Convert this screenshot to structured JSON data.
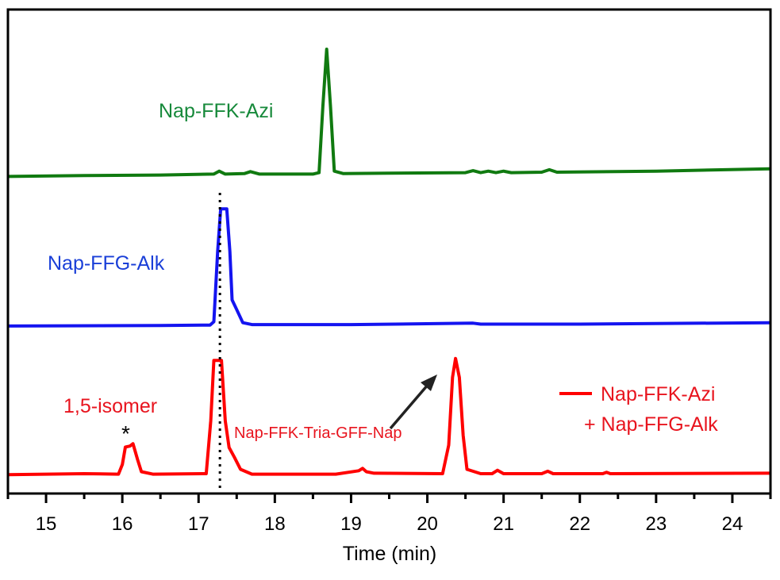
{
  "chart_data": {
    "type": "line",
    "title": "",
    "xlabel": "Time (min)",
    "ylabel": "",
    "xlim": [
      14.5,
      24.5
    ],
    "ylim": [
      0,
      100
    ],
    "xticks": [
      "15",
      "16",
      "17",
      "18",
      "19",
      "20",
      "21",
      "22",
      "23",
      "24"
    ],
    "y_ticks_shown": false,
    "grid": false,
    "legend": {
      "position": "right",
      "entries": [
        {
          "line1": "Nap-FFK-Azi",
          "line2": "+ Nap-FFG-Alk",
          "color": "#ff0000"
        }
      ]
    },
    "series": [
      {
        "name": "Nap-FFK-Azi",
        "color": "#107a10",
        "label_color": "#16893a",
        "points": [
          [
            14.5,
            65.5
          ],
          [
            15.5,
            65.7
          ],
          [
            16.5,
            65.8
          ],
          [
            17.2,
            66.0
          ],
          [
            17.27,
            66.6
          ],
          [
            17.35,
            66.0
          ],
          [
            17.6,
            66.1
          ],
          [
            17.68,
            66.5
          ],
          [
            17.8,
            66.0
          ],
          [
            18.5,
            66.0
          ],
          [
            18.58,
            66.3
          ],
          [
            18.63,
            80
          ],
          [
            18.68,
            91.8
          ],
          [
            18.73,
            80
          ],
          [
            18.78,
            66.6
          ],
          [
            18.9,
            66.1
          ],
          [
            19.5,
            66.2
          ],
          [
            20.5,
            66.3
          ],
          [
            20.6,
            66.7
          ],
          [
            20.7,
            66.3
          ],
          [
            20.8,
            66.6
          ],
          [
            20.9,
            66.3
          ],
          [
            21.0,
            66.6
          ],
          [
            21.1,
            66.3
          ],
          [
            21.5,
            66.4
          ],
          [
            21.6,
            66.9
          ],
          [
            21.7,
            66.4
          ],
          [
            23,
            66.6
          ],
          [
            24.5,
            67.1
          ]
        ]
      },
      {
        "name": "Nap-FFG-Alk",
        "color": "#1414f0",
        "label_color": "#1a3fd8",
        "points": [
          [
            14.5,
            34.6
          ],
          [
            16.5,
            34.7
          ],
          [
            17.15,
            34.8
          ],
          [
            17.2,
            35.5
          ],
          [
            17.25,
            50
          ],
          [
            17.29,
            58.8
          ],
          [
            17.37,
            58.8
          ],
          [
            17.41,
            50
          ],
          [
            17.44,
            40
          ],
          [
            17.5,
            38
          ],
          [
            17.58,
            35.3
          ],
          [
            17.7,
            34.9
          ],
          [
            19,
            34.9
          ],
          [
            20.6,
            35.2
          ],
          [
            20.7,
            35.0
          ],
          [
            22,
            35.0
          ],
          [
            24.5,
            35.3
          ]
        ]
      },
      {
        "name": "Nap-FFK-Azi + Nap-FFG-Alk",
        "color": "#ff0000",
        "label_color": "#e8141e",
        "points": [
          [
            14.5,
            3.9
          ],
          [
            15.5,
            4.1
          ],
          [
            15.95,
            4.0
          ],
          [
            16.0,
            6
          ],
          [
            16.04,
            9.6
          ],
          [
            16.1,
            9.8
          ],
          [
            16.14,
            10.3
          ],
          [
            16.2,
            7
          ],
          [
            16.25,
            4.5
          ],
          [
            16.4,
            4.0
          ],
          [
            17.1,
            4.1
          ],
          [
            17.16,
            15
          ],
          [
            17.2,
            27.5
          ],
          [
            17.3,
            27.5
          ],
          [
            17.35,
            15
          ],
          [
            17.4,
            9.5
          ],
          [
            17.47,
            7.5
          ],
          [
            17.55,
            5
          ],
          [
            17.7,
            4.0
          ],
          [
            18.8,
            4.0
          ],
          [
            19.1,
            4.7
          ],
          [
            19.15,
            5.2
          ],
          [
            19.2,
            4.5
          ],
          [
            19.3,
            4.2
          ],
          [
            20.2,
            4.1
          ],
          [
            20.28,
            10
          ],
          [
            20.33,
            24
          ],
          [
            20.37,
            27.9
          ],
          [
            20.42,
            24
          ],
          [
            20.47,
            12
          ],
          [
            20.52,
            5
          ],
          [
            20.7,
            4.1
          ],
          [
            20.85,
            4.1
          ],
          [
            20.92,
            4.8
          ],
          [
            21.0,
            4.1
          ],
          [
            21.5,
            4.1
          ],
          [
            21.58,
            4.6
          ],
          [
            21.65,
            4.1
          ],
          [
            22.3,
            4.1
          ],
          [
            22.35,
            4.4
          ],
          [
            22.4,
            4.1
          ],
          [
            24.5,
            4.2
          ]
        ]
      }
    ],
    "reference_line": {
      "x": 17.28,
      "style": "dotted",
      "color": "#000000"
    },
    "annotations": {
      "isomer_label": "1,5-isomer",
      "asterisk": "*",
      "product_label": "Nap-FFK-Tria-GFF-Nap",
      "arrow": "arrow-icon"
    }
  }
}
